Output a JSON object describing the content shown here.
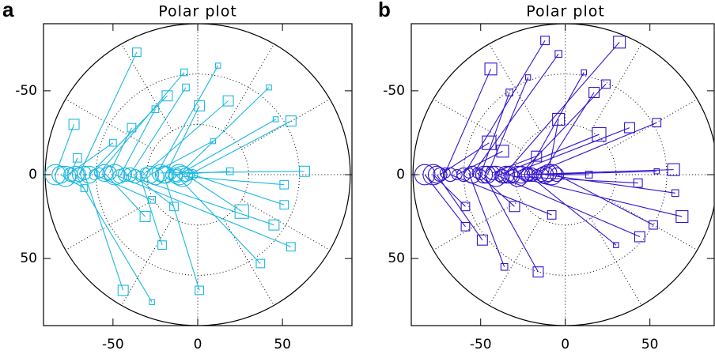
{
  "chart_data": [
    {
      "type": "polar-scatter",
      "panel_label": "a",
      "title": "Polar plot",
      "color": "#1cb8e0",
      "xlim": [
        -91,
        91
      ],
      "ylim": [
        90,
        -90
      ],
      "xticks": [
        -50,
        0,
        50
      ],
      "yticks": [
        -50,
        0,
        50
      ],
      "rings": [
        30,
        60,
        90
      ],
      "spoke_step": 30,
      "start": {
        "x": [
          -70,
          -58,
          -25,
          -40,
          -64,
          -46,
          -19,
          -31,
          -11,
          -13,
          -5,
          -84,
          -52,
          -28,
          -78,
          -75,
          -16,
          -22,
          -9,
          -81,
          -61,
          -37,
          -7,
          -3,
          -55,
          -43,
          -34,
          -49,
          -13,
          -67,
          -20,
          -72
        ],
        "y": [
          0,
          -1,
          1,
          0,
          0,
          1,
          0,
          -1,
          0,
          1,
          0,
          0,
          -1,
          0,
          1,
          0,
          0,
          -1,
          1,
          0,
          0,
          1,
          0,
          0,
          -1,
          0,
          1,
          0,
          0,
          -1,
          0,
          0
        ],
        "size": [
          4,
          3,
          5,
          4,
          5,
          4,
          5,
          3,
          6,
          4,
          3,
          6,
          4,
          5,
          6,
          4,
          3,
          5,
          6,
          5,
          3,
          4,
          4,
          3,
          5,
          4,
          3,
          6,
          4,
          4,
          5,
          5
        ]
      },
      "end": {
        "x": [
          -36,
          -8,
          12,
          -7,
          -18,
          -25,
          1,
          18,
          42,
          46,
          55,
          -73,
          -39,
          9,
          -50,
          -71,
          19,
          63,
          51,
          -67,
          -27,
          -14,
          26,
          51,
          -31,
          45,
          -21,
          55,
          37,
          -44,
          1,
          -27
        ],
        "y": [
          -73,
          -61,
          -65,
          -52,
          -47,
          -39,
          -41,
          -44,
          -52,
          -33,
          -32,
          -30,
          -28,
          -20,
          -19,
          -10,
          -2,
          -2,
          6,
          8,
          15,
          19,
          22,
          18,
          25,
          30,
          42,
          43,
          53,
          69,
          69,
          76
        ],
        "size": [
          2.5,
          2,
          1.5,
          2,
          3,
          2,
          3,
          3,
          1.5,
          1.5,
          3,
          3,
          2.5,
          1.5,
          2,
          2.5,
          2,
          3,
          2.5,
          2,
          2,
          2.5,
          4,
          2.5,
          3,
          3,
          2.5,
          2.5,
          2.5,
          3,
          2.5,
          1.5
        ]
      }
    },
    {
      "type": "polar-scatter",
      "panel_label": "b",
      "title": "Polar plot",
      "color": "#3414cc",
      "xlim": [
        -91,
        88
      ],
      "ylim": [
        90,
        -90
      ],
      "xticks": [
        -50,
        0,
        50
      ],
      "yticks": [
        -50,
        0,
        50
      ],
      "rings": [
        30,
        60,
        90
      ],
      "spoke_step": 30,
      "start": {
        "x": [
          -60,
          -37,
          -55,
          -71,
          -46,
          -23,
          -28,
          -14,
          -50,
          -10,
          -20,
          -33,
          -41,
          -74,
          -64,
          -43,
          -26,
          -17,
          -8,
          -31,
          -12,
          -78,
          -52,
          -68,
          -35,
          -83,
          -5,
          -39,
          -76,
          -22,
          -57,
          -48
        ],
        "y": [
          0,
          1,
          0,
          -1,
          0,
          0,
          1,
          0,
          0,
          -1,
          0,
          0,
          1,
          0,
          0,
          -1,
          0,
          0,
          0,
          1,
          0,
          0,
          -1,
          0,
          0,
          0,
          0,
          1,
          0,
          0,
          -1,
          0
        ],
        "size": [
          4,
          4,
          5,
          3,
          5,
          4,
          6,
          4,
          3,
          5,
          4,
          5,
          6,
          4,
          3,
          4,
          5,
          3,
          6,
          4,
          5,
          6,
          3,
          4,
          5,
          6,
          4,
          3,
          5,
          4,
          3,
          5
        ]
      },
      "end": {
        "x": [
          -12,
          32,
          -4,
          -44,
          -22,
          11,
          24,
          17,
          -33,
          -4,
          54,
          38,
          20,
          -45,
          -37,
          -17,
          64,
          54,
          14,
          43,
          65,
          -59,
          -30,
          -8,
          69,
          -59,
          52,
          44,
          -49,
          30,
          -36,
          -16
        ],
        "y": [
          -80,
          -79,
          -72,
          -63,
          -58,
          -61,
          -54,
          -49,
          -49,
          -33,
          -31,
          -28,
          -24,
          -19,
          -14,
          -11,
          -3,
          -2,
          0,
          5,
          11,
          19,
          19,
          24,
          25,
          31,
          30,
          37,
          39,
          42,
          55,
          58
        ],
        "size": [
          2.5,
          3.5,
          2,
          3.5,
          1.5,
          1.5,
          2.5,
          3,
          2,
          3.5,
          2.5,
          3,
          4,
          4,
          3.5,
          3,
          3.5,
          1.5,
          2,
          2.5,
          2,
          2.5,
          3,
          2.5,
          3.5,
          2.5,
          2.5,
          3,
          3,
          1.5,
          2,
          3
        ]
      }
    }
  ]
}
